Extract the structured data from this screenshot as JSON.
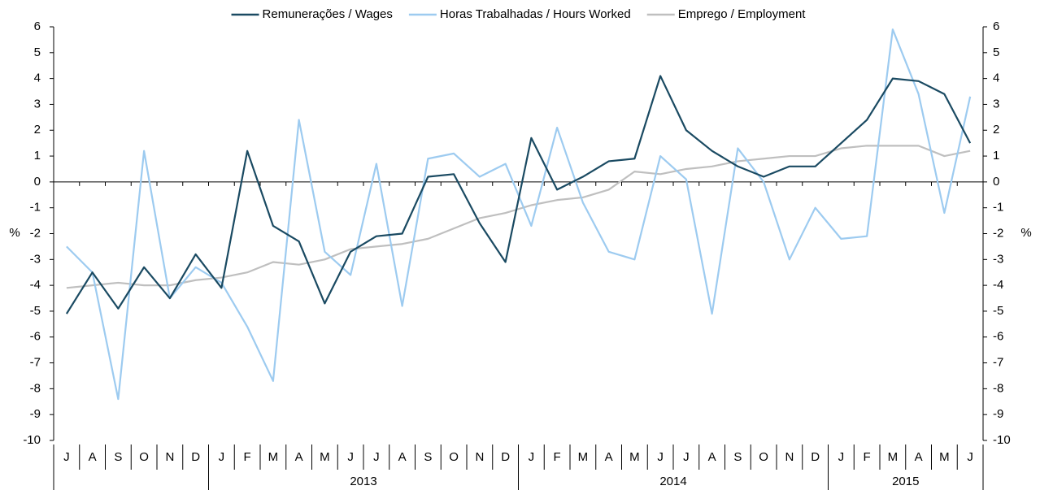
{
  "chart_data": {
    "type": "line",
    "y_label": "%",
    "y2_label": "%",
    "categories": [
      "J",
      "A",
      "S",
      "O",
      "N",
      "D",
      "J",
      "F",
      "M",
      "A",
      "M",
      "J",
      "J",
      "A",
      "S",
      "O",
      "N",
      "D",
      "J",
      "F",
      "M",
      "A",
      "M",
      "J",
      "J",
      "A",
      "S",
      "O",
      "N",
      "D",
      "J",
      "F",
      "M",
      "A",
      "M",
      "J"
    ],
    "years": [
      null,
      null,
      null,
      null,
      null,
      null,
      "2013",
      "2013",
      "2013",
      "2013",
      "2013",
      "2013",
      "2013",
      "2013",
      "2013",
      "2013",
      "2013",
      "2013",
      "2014",
      "2014",
      "2014",
      "2014",
      "2014",
      "2014",
      "2014",
      "2014",
      "2014",
      "2014",
      "2014",
      "2014",
      "2015",
      "2015",
      "2015",
      "2015",
      "2015",
      "2015"
    ],
    "series": [
      {
        "name": "Remunerações / Wages",
        "color": "#1a4a62",
        "values": [
          -5.1,
          -3.5,
          -4.9,
          -3.3,
          -4.5,
          -2.8,
          -4.1,
          1.2,
          -1.7,
          -2.3,
          -4.7,
          -2.7,
          -2.1,
          -2.0,
          0.2,
          0.3,
          -1.6,
          -3.1,
          1.7,
          -0.3,
          0.2,
          0.8,
          0.9,
          4.1,
          2.0,
          1.2,
          0.6,
          0.2,
          0.6,
          0.6,
          1.5,
          2.4,
          4.0,
          3.9,
          3.4,
          1.5
        ]
      },
      {
        "name": "Horas Trabalhadas / Hours Worked",
        "color": "#9dcbf0",
        "values": [
          -2.5,
          -3.5,
          -8.4,
          1.2,
          -4.5,
          -3.3,
          -3.9,
          -5.6,
          -7.7,
          2.4,
          -2.7,
          -3.6,
          0.7,
          -4.8,
          0.9,
          1.1,
          0.2,
          0.7,
          -1.7,
          2.1,
          -0.8,
          -2.7,
          -3.0,
          1.0,
          0.1,
          -5.1,
          1.3,
          0.0,
          -3.0,
          -1.0,
          -2.2,
          -2.1,
          5.9,
          3.4,
          -1.2,
          3.3
        ]
      },
      {
        "name": "Emprego / Employment",
        "color": "#bfbfbf",
        "values": [
          -4.1,
          -4.0,
          -3.9,
          -4.0,
          -4.0,
          -3.8,
          -3.7,
          -3.5,
          -3.1,
          -3.2,
          -3.0,
          -2.6,
          -2.5,
          -2.4,
          -2.2,
          -1.8,
          -1.4,
          -1.2,
          -0.9,
          -0.7,
          -0.6,
          -0.3,
          0.4,
          0.3,
          0.5,
          0.6,
          0.8,
          0.9,
          1.0,
          1.0,
          1.3,
          1.4,
          1.4,
          1.4,
          1.0,
          1.2
        ]
      }
    ],
    "ylim": [
      -10,
      6
    ],
    "yticks": [
      -10,
      -9,
      -8,
      -7,
      -6,
      -5,
      -4,
      -3,
      -2,
      -1,
      0,
      1,
      2,
      3,
      4,
      5,
      6
    ],
    "y2lim": [
      -10,
      6
    ],
    "y2ticks": [
      -10,
      -9,
      -8,
      -7,
      -6,
      -5,
      -4,
      -3,
      -2,
      -1,
      0,
      1,
      2,
      3,
      4,
      5,
      6
    ],
    "grid": false,
    "legend": "top"
  }
}
